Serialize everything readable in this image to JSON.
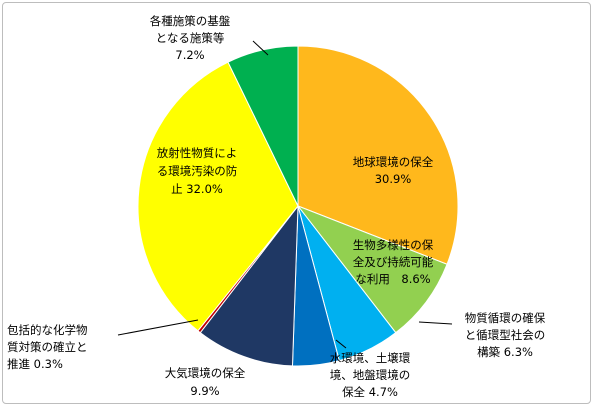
{
  "chart_data": {
    "type": "pie",
    "categories": [
      "地球環境の保全",
      "生物多様性の保全及び持続可能な利用",
      "物質循環の確保と循環型社会の構築",
      "水環境、土壌環境、地盤環境の保全",
      "大気環境の保全",
      "包括的な化学物質対策の確立と推進",
      "放射性物質による環境汚染の防止",
      "各種施策の基盤となる施策等"
    ],
    "values": [
      30.9,
      8.6,
      6.3,
      4.7,
      9.9,
      0.3,
      32.0,
      7.2
    ],
    "colors": [
      "#FFB81C",
      "#92D050",
      "#00B0F0",
      "#0070C0",
      "#1F3864",
      "#C00000",
      "#FFFF00",
      "#00B050"
    ],
    "labels": [
      [
        "地球環境の保全",
        "30.9%"
      ],
      [
        "生物多様性の保",
        "全及び持続可能",
        "な利用　8.6%"
      ],
      [
        "物質循環の確保",
        "と循環型社会の",
        "構築 6.3%"
      ],
      [
        "水環境、土壌環",
        "境、地盤環境の",
        "保全 4.7%"
      ],
      [
        "大気環境の保全",
        "9.9%"
      ],
      [
        "包括的な化学物",
        "質対策の確立と",
        "推進 0.3%"
      ],
      [
        "放射性物質によ",
        "る環境汚染の防",
        "止 32.0%"
      ],
      [
        "各種施策の基盤",
        "となる施策等",
        "7.2%"
      ]
    ],
    "legend": "none"
  }
}
